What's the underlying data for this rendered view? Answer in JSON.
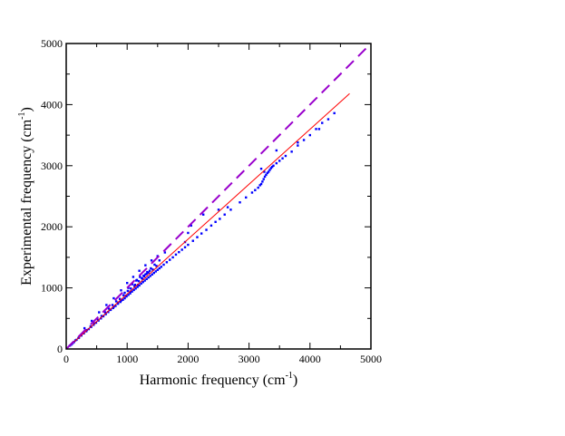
{
  "chart_data": {
    "type": "scatter",
    "title": "",
    "xlabel": "Harmonic frequency (cm",
    "ylabel": "Experimental frequency (cm",
    "label_unit_superscript": "-1",
    "label_unit_close": ")",
    "xlim": [
      0,
      5000
    ],
    "ylim": [
      0,
      5000
    ],
    "xticks": [
      0,
      1000,
      2000,
      3000,
      4000,
      5000
    ],
    "yticks": [
      0,
      1000,
      2000,
      3000,
      4000,
      5000
    ],
    "grid": false,
    "legend": "none",
    "colors": {
      "points": "#0000ff",
      "fit": "#ff0000",
      "identity": "#9900cc"
    },
    "series": [
      {
        "kind": "points",
        "x": [
          60,
          95,
          130,
          170,
          210,
          250,
          290,
          330,
          370,
          410,
          450,
          490,
          530,
          570,
          610,
          650,
          690,
          730,
          770,
          810,
          850,
          890,
          930,
          960,
          990,
          1020,
          1050,
          1080,
          1110,
          1140,
          1170,
          1200,
          1230,
          1260,
          1290,
          1320,
          1350,
          1380,
          1410,
          1440,
          1470,
          1500,
          1530,
          1560,
          1600,
          1650,
          1700,
          1750,
          1800,
          1850,
          1900,
          1950,
          2000,
          2080,
          2150,
          2220,
          2300,
          2380,
          2450,
          2520,
          2600,
          2700,
          2850,
          2950,
          3050,
          3100,
          3150,
          3180,
          3200,
          3220,
          3240,
          3260,
          3280,
          3300,
          3320,
          3340,
          3360,
          3380,
          3400,
          3450,
          3500,
          3550,
          3600,
          3700,
          3800,
          3900,
          4000,
          4100,
          4200,
          4300,
          4400,
          300,
          420,
          540,
          660,
          780,
          900,
          1000,
          1100,
          1200,
          1300,
          1400,
          1500,
          1620,
          1250,
          1180,
          1120,
          1050,
          980,
          900,
          850,
          780,
          720,
          1150,
          1300,
          1350,
          1420,
          1480,
          2050,
          2000,
          1950,
          2250,
          2500,
          2650,
          3200,
          3250,
          3450,
          3800,
          4150,
          880,
          940,
          1010,
          1060,
          1130,
          1190,
          1240,
          1280,
          1320,
          1370,
          1020,
          1085,
          1160,
          1210,
          960,
          1270,
          1330,
          1390,
          1450,
          1530,
          820,
          760,
          700,
          640,
          580,
          520,
          460,
          400,
          340,
          280,
          200,
          150,
          110,
          80
        ],
        "y": [
          55,
          85,
          115,
          150,
          185,
          220,
          255,
          290,
          325,
          360,
          395,
          430,
          465,
          500,
          535,
          570,
          605,
          640,
          670,
          705,
          740,
          770,
          805,
          830,
          860,
          885,
          910,
          940,
          965,
          990,
          1015,
          1040,
          1070,
          1095,
          1120,
          1145,
          1170,
          1195,
          1220,
          1245,
          1270,
          1295,
          1320,
          1345,
          1380,
          1420,
          1460,
          1500,
          1545,
          1585,
          1625,
          1665,
          1705,
          1770,
          1830,
          1890,
          1950,
          2020,
          2080,
          2130,
          2200,
          2280,
          2400,
          2480,
          2560,
          2600,
          2640,
          2680,
          2700,
          2740,
          2780,
          2820,
          2850,
          2880,
          2900,
          2930,
          2960,
          2980,
          3000,
          3040,
          3080,
          3120,
          3160,
          3230,
          3330,
          3420,
          3500,
          3600,
          3700,
          3760,
          3860,
          340,
          460,
          600,
          720,
          830,
          960,
          1080,
          1180,
          1280,
          1370,
          1450,
          1520,
          1580,
          1150,
          1050,
          1030,
          940,
          870,
          790,
          760,
          690,
          640,
          1120,
          1220,
          1250,
          1300,
          1360,
          2020,
          1900,
          1750,
          2200,
          2280,
          2320,
          2950,
          2900,
          3250,
          3380,
          3600,
          820,
          880,
          950,
          990,
          1050,
          1110,
          1160,
          1190,
          1230,
          1280,
          1000,
          1060,
          1130,
          1180,
          920,
          1200,
          1260,
          1320,
          1380,
          1450,
          780,
          720,
          660,
          600,
          540,
          480,
          420,
          370,
          310,
          260,
          180,
          140,
          100,
          70
        ]
      },
      {
        "kind": "fit",
        "x": [
          0,
          4650
        ],
        "y": [
          0,
          4180
        ]
      },
      {
        "kind": "identity",
        "x": [
          0,
          5000
        ],
        "y": [
          0,
          5000
        ]
      }
    ]
  }
}
